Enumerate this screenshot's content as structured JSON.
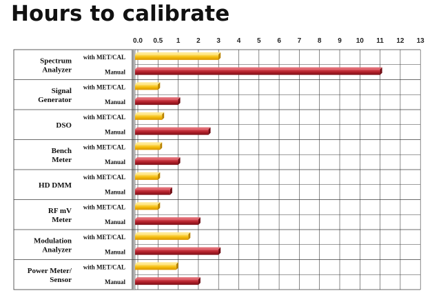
{
  "chart_data": {
    "type": "bar",
    "orientation": "horizontal",
    "title": "Hours to calibrate",
    "xlabel": "",
    "ylabel": "",
    "xlim": [
      0,
      13
    ],
    "x_ticks": [
      "0.0",
      "0.5",
      "1",
      "2",
      "3",
      "4",
      "5",
      "6",
      "7",
      "8",
      "9",
      "10",
      "11",
      "12",
      "13"
    ],
    "x_tick_values": [
      0,
      0.5,
      1,
      2,
      3,
      4,
      5,
      6,
      7,
      8,
      9,
      10,
      11,
      12,
      13
    ],
    "grid": true,
    "categories": [
      [
        "Spectrum",
        "Analyzer"
      ],
      [
        "Signal",
        "Generator"
      ],
      [
        "DSO"
      ],
      [
        "Bench",
        "Meter"
      ],
      [
        "HD DMM"
      ],
      [
        "RF mV",
        "Meter"
      ],
      [
        "Modulation",
        "Analyzer"
      ],
      [
        "Power Meter/",
        "Sensor"
      ]
    ],
    "series": [
      {
        "name": "with MET/CAL",
        "color": "#f2b705",
        "values": [
          3,
          0.5,
          0.6,
          0.55,
          0.5,
          0.5,
          1.5,
          0.95
        ]
      },
      {
        "name": "Manual",
        "color": "#b3202a",
        "values": [
          11,
          1,
          2.5,
          1,
          0.8,
          2,
          3,
          2
        ]
      }
    ]
  }
}
